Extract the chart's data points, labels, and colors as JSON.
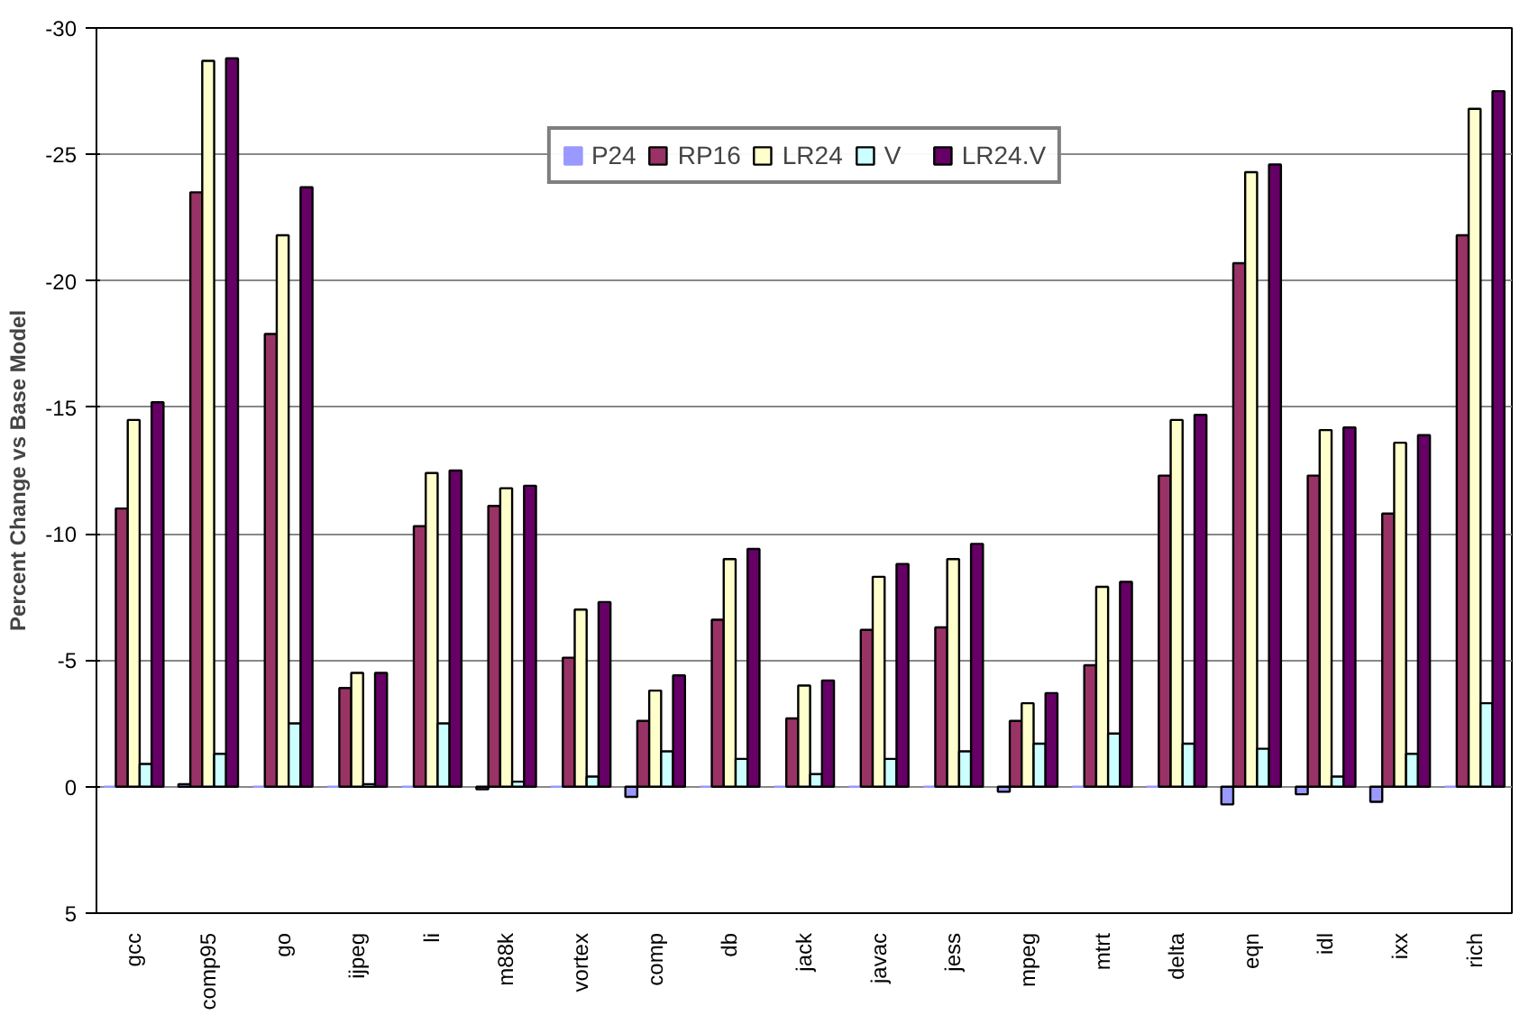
{
  "chart_data": {
    "type": "bar",
    "ylabel": "Percent Change vs Base Model",
    "categories": [
      "gcc",
      "comp95",
      "go",
      "ijpeg",
      "li",
      "m88k",
      "vortex",
      "comp",
      "db",
      "jack",
      "javac",
      "jess",
      "mpeg",
      "mtrt",
      "delta",
      "eqn",
      "idl",
      "ixx",
      "rich"
    ],
    "series": [
      {
        "name": "P24",
        "color": "#9999ff",
        "values": [
          0,
          -0.1,
          0,
          0,
          0,
          0.1,
          0,
          0.4,
          0,
          0,
          0,
          0,
          0.2,
          0,
          0,
          0.7,
          0.3,
          0.6,
          0
        ]
      },
      {
        "name": "RP16",
        "color": "#993366",
        "values": [
          -11.0,
          -23.5,
          -17.9,
          -3.9,
          -10.3,
          -11.1,
          -5.1,
          -2.6,
          -6.6,
          -2.7,
          -6.2,
          -6.3,
          -2.6,
          -4.8,
          -12.3,
          -20.7,
          -12.3,
          -10.8,
          -21.8
        ]
      },
      {
        "name": "LR24",
        "color": "#ffffcc",
        "values": [
          -14.5,
          -28.7,
          -21.8,
          -4.5,
          -12.4,
          -11.8,
          -7.0,
          -3.8,
          -9.0,
          -4.0,
          -8.3,
          -9.0,
          -3.3,
          -7.9,
          -14.5,
          -24.3,
          -14.1,
          -13.6,
          -26.8
        ]
      },
      {
        "name": "V",
        "color": "#ccffff",
        "values": [
          -0.9,
          -1.3,
          -2.5,
          -0.1,
          -2.5,
          -0.2,
          -0.4,
          -1.4,
          -1.1,
          -0.5,
          -1.1,
          -1.4,
          -1.7,
          -2.1,
          -1.7,
          -1.5,
          -0.4,
          -1.3,
          -3.3
        ]
      },
      {
        "name": "LR24.V",
        "color": "#660066",
        "values": [
          -15.2,
          -28.8,
          -23.7,
          -4.5,
          -12.5,
          -11.9,
          -7.3,
          -4.4,
          -9.4,
          -4.2,
          -8.8,
          -9.6,
          -3.7,
          -8.1,
          -14.7,
          -24.6,
          -14.2,
          -13.9,
          -27.5
        ]
      }
    ],
    "ylim": [
      5,
      -30
    ],
    "yticks": [
      5,
      0,
      -5,
      -10,
      -15,
      -20,
      -25,
      -30
    ],
    "grid": "y",
    "legend": "top"
  }
}
